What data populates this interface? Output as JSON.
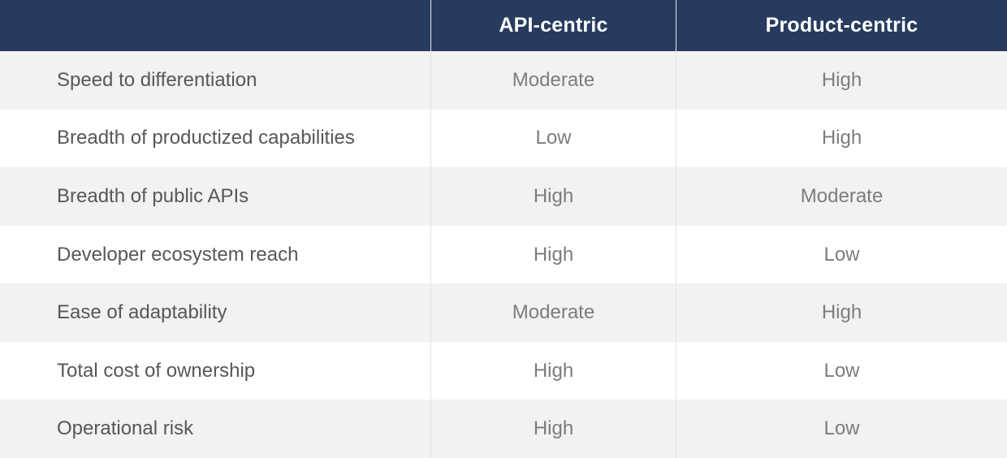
{
  "table": {
    "header": {
      "col_attribute": "",
      "col_api": "API-centric",
      "col_product": "Product-centric"
    },
    "rows": [
      {
        "label": "Speed to differentiation",
        "api": "Moderate",
        "product": "High"
      },
      {
        "label": "Breadth of productized capabilities",
        "api": "Low",
        "product": "High"
      },
      {
        "label": "Breadth of public APIs",
        "api": "High",
        "product": "Moderate"
      },
      {
        "label": "Developer ecosystem reach",
        "api": "High",
        "product": "Low"
      },
      {
        "label": "Ease of adaptability",
        "api": "Moderate",
        "product": "High"
      },
      {
        "label": "Total cost of ownership",
        "api": "High",
        "product": "Low"
      },
      {
        "label": "Operational risk",
        "api": "High",
        "product": "Low"
      }
    ]
  },
  "colors": {
    "header_bg": "#273b5e",
    "header_text": "#ffffff",
    "row_alt_bg": "#f2f2f2",
    "row_bg": "#ffffff",
    "divider": "#e2e2e2",
    "label_text": "#56575a",
    "value_text": "#7b7c7f"
  }
}
